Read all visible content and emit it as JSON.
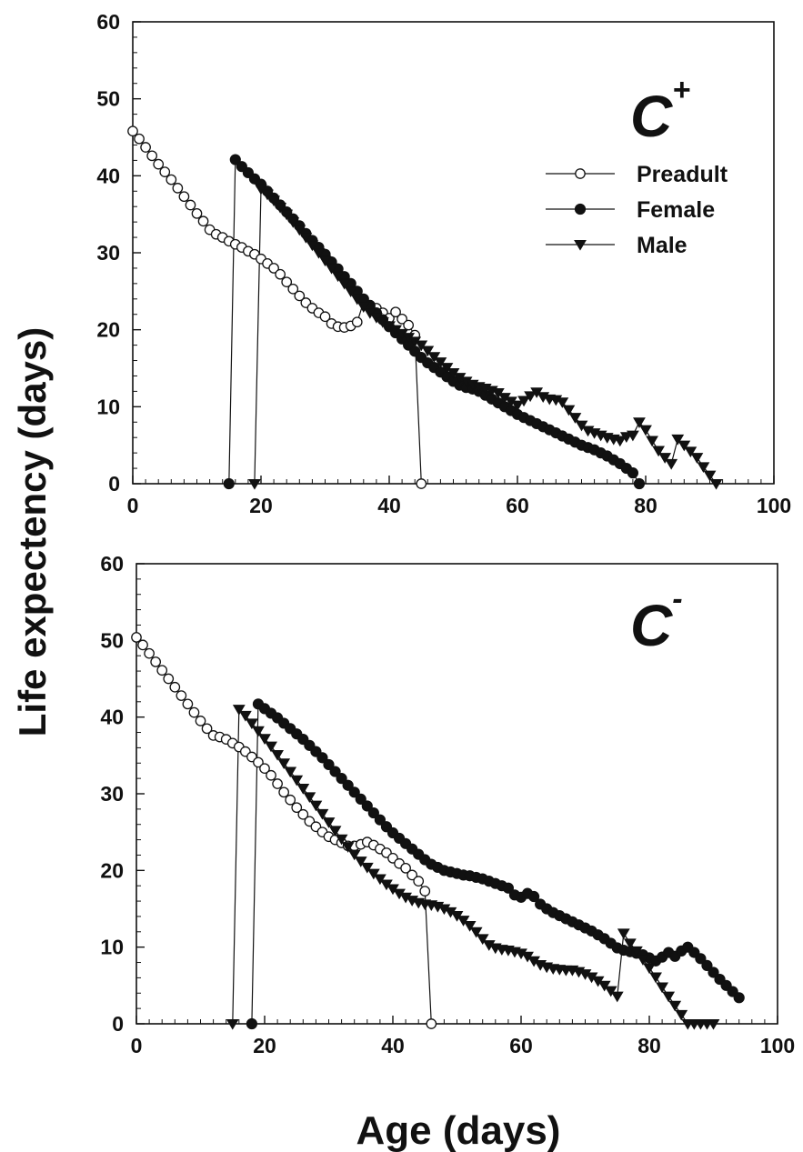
{
  "figure": {
    "xlabel": "Age (days)",
    "ylabel": "Life expectency (days)",
    "legend": [
      {
        "label": "Preadult",
        "marker": "open-circle"
      },
      {
        "label": "Female",
        "marker": "filled-circle"
      },
      {
        "label": "Male",
        "marker": "filled-triangle-down"
      }
    ],
    "colors": {
      "line": "#111111",
      "marker": "#111111",
      "background": "#ffffff"
    }
  },
  "chart_data": [
    {
      "type": "line",
      "panel_label": "C",
      "panel_superscript": "+",
      "xlabel": "Age (days)",
      "ylabel": "Life expectency (days)",
      "xlim": [
        0,
        100
      ],
      "ylim": [
        0,
        60
      ],
      "xticks": [
        "0",
        "20",
        "40",
        "60",
        "80",
        "100"
      ],
      "yticks": [
        "0",
        "10",
        "20",
        "30",
        "40",
        "50",
        "60"
      ],
      "legend_position": "top-right",
      "grid": false,
      "series": [
        {
          "name": "Preadult",
          "marker": "open-circle",
          "x": [
            0,
            1,
            2,
            3,
            4,
            5,
            6,
            7,
            8,
            9,
            10,
            11,
            12,
            13,
            14,
            15,
            16,
            17,
            18,
            19,
            20,
            21,
            22,
            23,
            24,
            25,
            26,
            27,
            28,
            29,
            30,
            31,
            32,
            33,
            34,
            35,
            36,
            37,
            38,
            39,
            40,
            41,
            42,
            43,
            44,
            45
          ],
          "y": [
            45.8,
            44.8,
            43.7,
            42.6,
            41.5,
            40.5,
            39.5,
            38.4,
            37.3,
            36.2,
            35.1,
            34.1,
            33.0,
            32.4,
            32.0,
            31.5,
            31.1,
            30.7,
            30.2,
            29.8,
            29.2,
            28.6,
            28.0,
            27.2,
            26.2,
            25.3,
            24.4,
            23.5,
            22.8,
            22.2,
            21.7,
            20.8,
            20.4,
            20.3,
            20.5,
            21.0,
            23.6,
            23.2,
            22.8,
            22.2,
            21.5,
            22.3,
            21.4,
            20.6,
            19.3,
            0
          ]
        },
        {
          "name": "Female",
          "marker": "filled-circle",
          "x": [
            15,
            16,
            17,
            18,
            19,
            20,
            21,
            22,
            23,
            24,
            25,
            26,
            27,
            28,
            29,
            30,
            31,
            32,
            33,
            34,
            35,
            36,
            37,
            38,
            39,
            40,
            41,
            42,
            43,
            44,
            45,
            46,
            47,
            48,
            49,
            50,
            51,
            52,
            53,
            54,
            55,
            56,
            57,
            58,
            59,
            60,
            61,
            62,
            63,
            64,
            65,
            66,
            67,
            68,
            69,
            70,
            71,
            72,
            73,
            74,
            75,
            76,
            77,
            78,
            79
          ],
          "y": [
            0,
            42.1,
            41.2,
            40.4,
            39.6,
            38.9,
            38.0,
            37.1,
            36.2,
            35.3,
            34.4,
            33.5,
            32.5,
            31.6,
            30.7,
            29.8,
            28.8,
            27.9,
            26.9,
            26.0,
            25.0,
            24.0,
            23.1,
            22.2,
            21.3,
            20.4,
            19.6,
            18.8,
            18.0,
            17.2,
            16.4,
            15.7,
            15.1,
            14.5,
            13.9,
            13.3,
            12.8,
            12.5,
            12.3,
            12.0,
            11.5,
            11.0,
            10.5,
            10.0,
            9.5,
            9.0,
            8.6,
            8.2,
            7.8,
            7.4,
            7.0,
            6.6,
            6.2,
            5.8,
            5.4,
            5.0,
            4.7,
            4.4,
            4.0,
            3.6,
            3.1,
            2.6,
            2.0,
            1.4,
            0
          ]
        },
        {
          "name": "Male",
          "marker": "filled-triangle-down",
          "x": [
            19,
            20,
            21,
            22,
            23,
            24,
            25,
            26,
            27,
            28,
            29,
            30,
            31,
            32,
            33,
            34,
            35,
            36,
            37,
            38,
            39,
            40,
            41,
            42,
            43,
            44,
            45,
            46,
            47,
            48,
            49,
            50,
            51,
            52,
            53,
            54,
            55,
            56,
            57,
            58,
            59,
            60,
            61,
            62,
            63,
            64,
            65,
            66,
            67,
            68,
            69,
            70,
            71,
            72,
            73,
            74,
            75,
            76,
            77,
            78,
            79,
            80,
            81,
            82,
            83,
            84,
            85,
            86,
            87,
            88,
            89,
            90,
            91
          ],
          "y": [
            0,
            38.3,
            37.6,
            36.8,
            35.9,
            35.0,
            34.0,
            33.0,
            32.0,
            31.0,
            30.0,
            29.0,
            28.0,
            27.0,
            26.0,
            25.0,
            24.0,
            23.0,
            22.2,
            21.6,
            21.0,
            20.5,
            20.0,
            19.5,
            19.0,
            18.5,
            18.0,
            17.3,
            16.5,
            15.8,
            15.1,
            14.4,
            13.8,
            13.3,
            12.9,
            12.6,
            12.4,
            12.1,
            11.8,
            11.2,
            10.7,
            10.2,
            10.8,
            11.4,
            11.9,
            11.3,
            11.0,
            10.9,
            10.6,
            9.6,
            8.6,
            7.6,
            6.9,
            6.6,
            6.3,
            6.0,
            5.8,
            5.6,
            6.1,
            6.3,
            8.0,
            7.0,
            5.6,
            4.3,
            3.4,
            2.6,
            5.8,
            5.0,
            4.2,
            3.4,
            2.2,
            1.1,
            0
          ]
        }
      ]
    },
    {
      "type": "line",
      "panel_label": "C",
      "panel_superscript": "-",
      "xlabel": "Age (days)",
      "ylabel": "Life expectency (days)",
      "xlim": [
        0,
        100
      ],
      "ylim": [
        0,
        60
      ],
      "xticks": [
        "0",
        "20",
        "40",
        "60",
        "80",
        "100"
      ],
      "yticks": [
        "0",
        "10",
        "20",
        "30",
        "40",
        "50",
        "60"
      ],
      "grid": false,
      "series": [
        {
          "name": "Preadult",
          "marker": "open-circle",
          "x": [
            0,
            1,
            2,
            3,
            4,
            5,
            6,
            7,
            8,
            9,
            10,
            11,
            12,
            13,
            14,
            15,
            16,
            17,
            18,
            19,
            20,
            21,
            22,
            23,
            24,
            25,
            26,
            27,
            28,
            29,
            30,
            31,
            32,
            33,
            34,
            35,
            36,
            37,
            38,
            39,
            40,
            41,
            42,
            43,
            44,
            45,
            46
          ],
          "y": [
            50.4,
            49.4,
            48.3,
            47.2,
            46.1,
            45.0,
            43.9,
            42.8,
            41.7,
            40.6,
            39.5,
            38.5,
            37.6,
            37.4,
            37.1,
            36.6,
            36.1,
            35.5,
            34.8,
            34.1,
            33.3,
            32.4,
            31.3,
            30.2,
            29.2,
            28.2,
            27.3,
            26.4,
            25.7,
            25.0,
            24.4,
            24.0,
            23.6,
            23.2,
            23.2,
            23.4,
            23.7,
            23.3,
            22.8,
            22.3,
            21.6,
            20.9,
            20.3,
            19.4,
            18.6,
            17.3,
            0
          ]
        },
        {
          "name": "Female",
          "marker": "filled-circle",
          "x": [
            18,
            19,
            20,
            21,
            22,
            23,
            24,
            25,
            26,
            27,
            28,
            29,
            30,
            31,
            32,
            33,
            34,
            35,
            36,
            37,
            38,
            39,
            40,
            41,
            42,
            43,
            44,
            45,
            46,
            47,
            48,
            49,
            50,
            51,
            52,
            53,
            54,
            55,
            56,
            57,
            58,
            59,
            60,
            61,
            62,
            63,
            64,
            65,
            66,
            67,
            68,
            69,
            70,
            71,
            72,
            73,
            74,
            75,
            76,
            77,
            78,
            79,
            80,
            81,
            82,
            83,
            84,
            85,
            86,
            87,
            88,
            89,
            90,
            91,
            92,
            93,
            94
          ],
          "y": [
            0,
            41.7,
            41.1,
            40.5,
            39.9,
            39.2,
            38.5,
            37.8,
            37.1,
            36.3,
            35.5,
            34.7,
            33.8,
            32.9,
            32.0,
            31.1,
            30.2,
            29.3,
            28.4,
            27.5,
            26.6,
            25.7,
            24.9,
            24.2,
            23.5,
            22.8,
            22.1,
            21.4,
            20.8,
            20.4,
            20.0,
            19.8,
            19.6,
            19.4,
            19.3,
            19.1,
            18.9,
            18.6,
            18.3,
            18.0,
            17.7,
            16.8,
            16.5,
            17.0,
            16.6,
            15.6,
            15.0,
            14.5,
            14.1,
            13.7,
            13.3,
            12.9,
            12.5,
            12.1,
            11.6,
            11.1,
            10.5,
            9.9,
            9.6,
            9.4,
            9.2,
            9.0,
            8.6,
            8.2,
            8.7,
            9.3,
            8.8,
            9.5,
            10.0,
            9.3,
            8.5,
            7.6,
            6.7,
            5.8,
            5.0,
            4.2,
            3.4
          ]
        },
        {
          "name": "Male",
          "marker": "filled-triangle-down",
          "x": [
            15,
            16,
            17,
            18,
            19,
            20,
            21,
            22,
            23,
            24,
            25,
            26,
            27,
            28,
            29,
            30,
            31,
            32,
            33,
            34,
            35,
            36,
            37,
            38,
            39,
            40,
            41,
            42,
            43,
            44,
            45,
            46,
            47,
            48,
            49,
            50,
            51,
            52,
            53,
            54,
            55,
            56,
            57,
            58,
            59,
            60,
            61,
            62,
            63,
            64,
            65,
            66,
            67,
            68,
            69,
            70,
            71,
            72,
            73,
            74,
            75,
            76,
            77,
            78,
            79,
            80,
            81,
            82,
            83,
            84,
            85,
            86,
            87,
            88,
            89,
            90
          ],
          "y": [
            0,
            41.0,
            40.2,
            39.2,
            38.2,
            37.2,
            36.2,
            35.1,
            34.0,
            32.9,
            31.8,
            30.7,
            29.6,
            28.5,
            27.4,
            26.3,
            25.2,
            24.1,
            23.1,
            22.1,
            21.2,
            20.4,
            19.6,
            18.9,
            18.2,
            17.6,
            17.0,
            16.5,
            16.1,
            15.8,
            15.6,
            15.5,
            15.3,
            15.0,
            14.6,
            14.1,
            13.5,
            12.8,
            12.0,
            11.1,
            10.3,
            9.9,
            9.7,
            9.6,
            9.4,
            9.2,
            8.8,
            8.2,
            7.7,
            7.4,
            7.2,
            7.1,
            7.0,
            7.0,
            6.8,
            6.5,
            6.1,
            5.6,
            5.0,
            4.3,
            3.6,
            11.8,
            10.5,
            9.5,
            8.4,
            7.3,
            6.1,
            4.8,
            3.6,
            2.4,
            1.2,
            0,
            0,
            0,
            0,
            0
          ]
        }
      ]
    }
  ]
}
